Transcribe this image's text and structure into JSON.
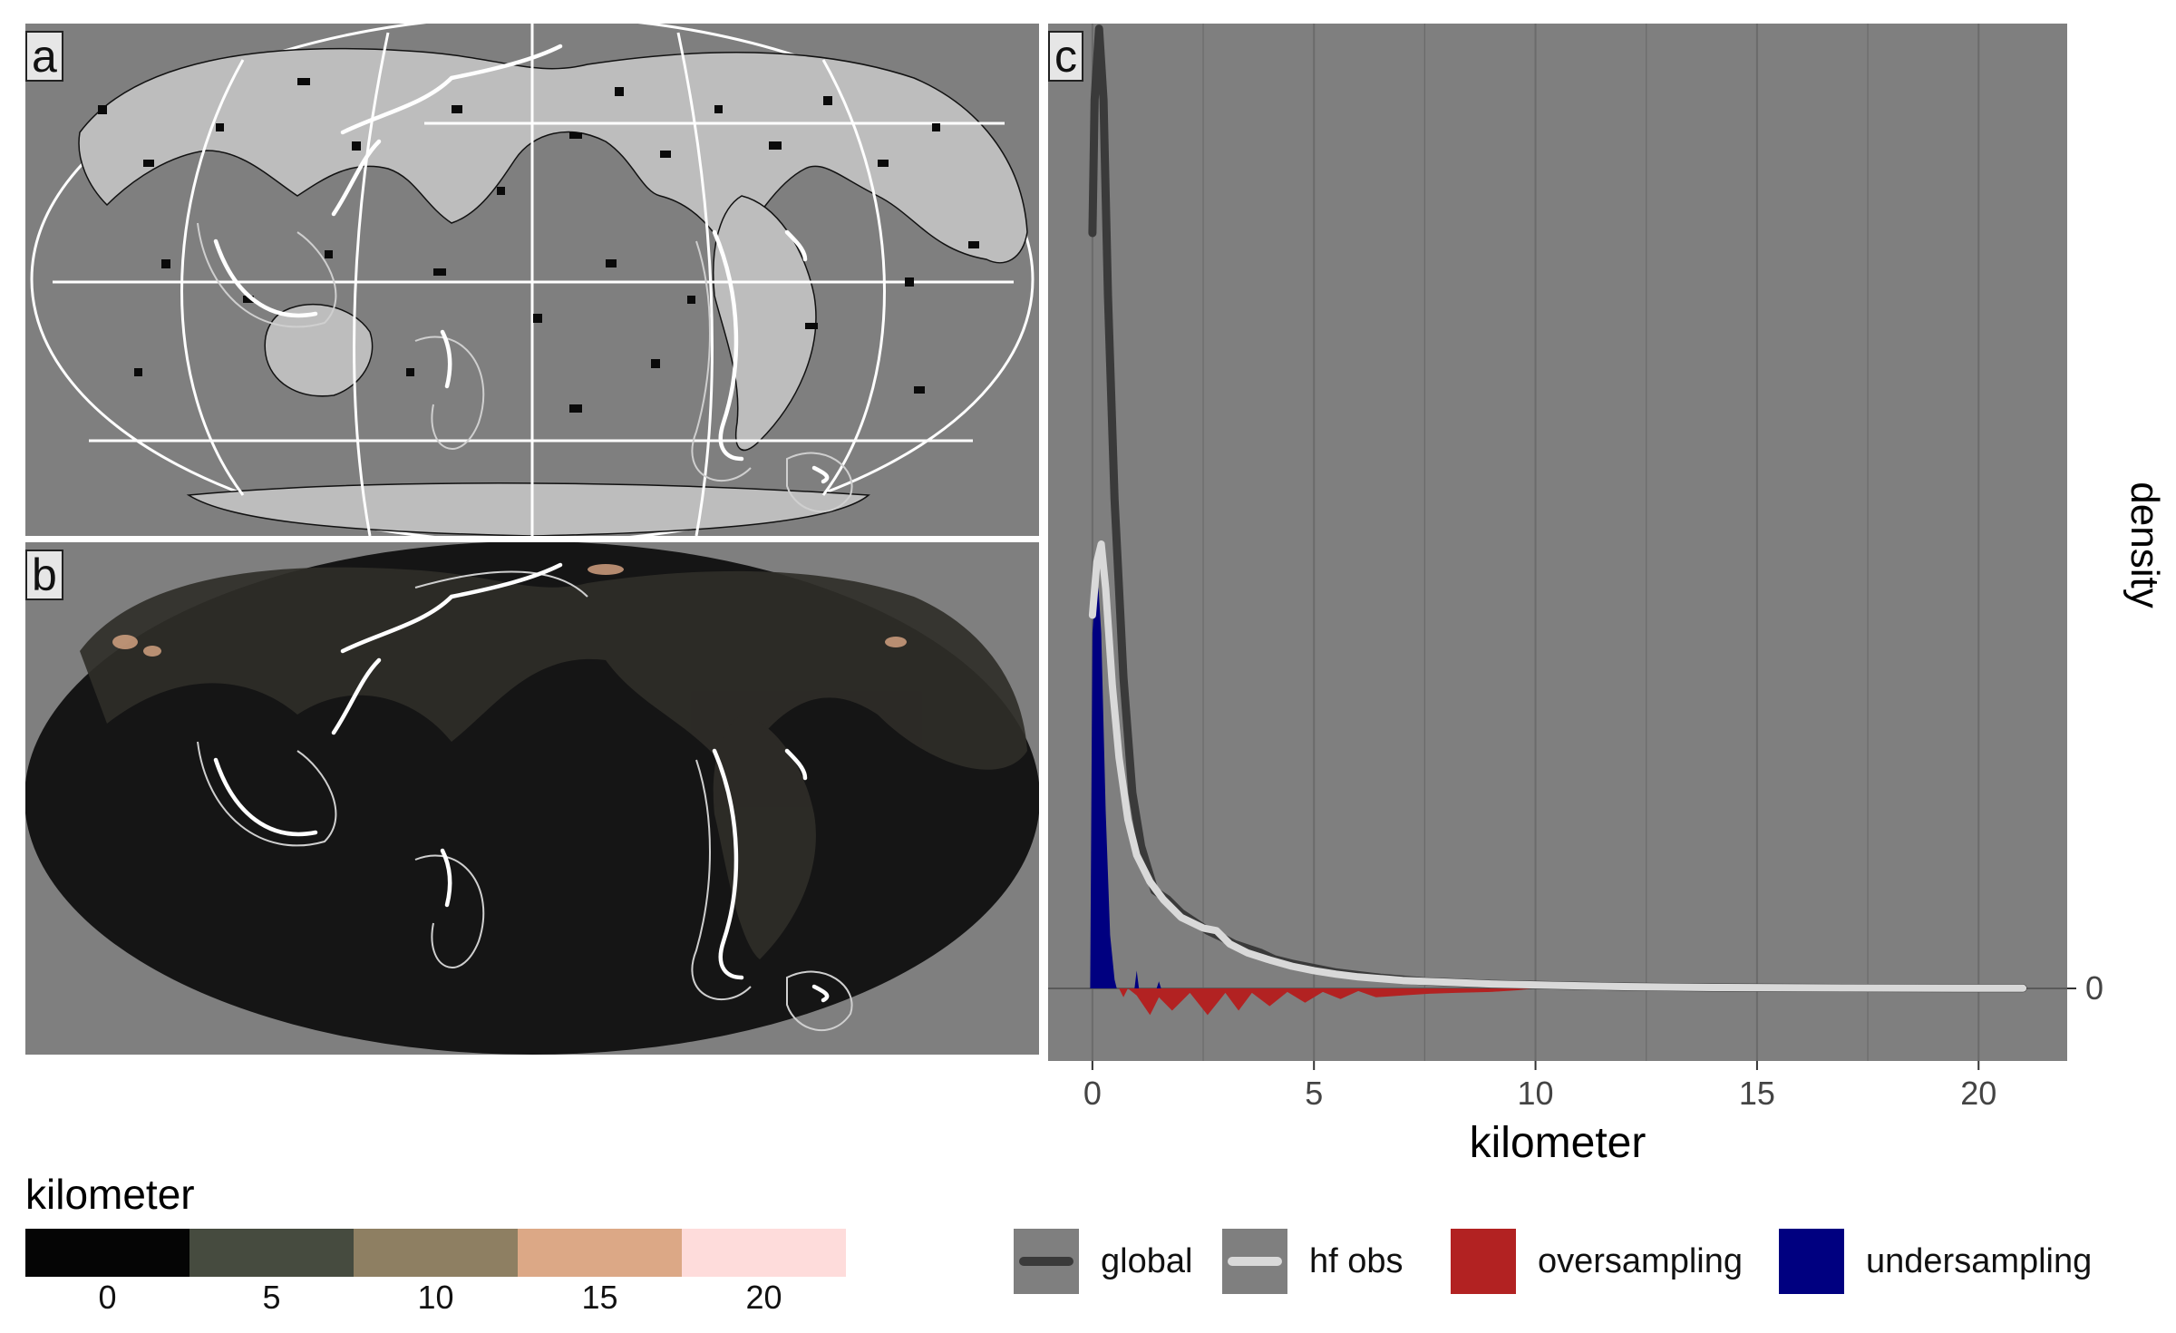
{
  "panels": {
    "a": "a",
    "b": "b",
    "c": "c"
  },
  "chart_data": {
    "type": "area",
    "xlabel": "kilometer",
    "ylabel": "density",
    "xlim": [
      -1,
      22
    ],
    "x_ticks": [
      0,
      5,
      10,
      15,
      20
    ],
    "y_ticks": [
      0
    ],
    "grid": true,
    "legend_position": "bottom",
    "series": [
      {
        "name": "global",
        "kind": "line",
        "color": "#3a3a3a",
        "points": [
          [
            0,
            0.85
          ],
          [
            0.05,
            1.0
          ],
          [
            0.15,
            1.08
          ],
          [
            0.25,
            1.0
          ],
          [
            0.35,
            0.78
          ],
          [
            0.5,
            0.55
          ],
          [
            0.7,
            0.35
          ],
          [
            0.9,
            0.22
          ],
          [
            1.1,
            0.16
          ],
          [
            1.4,
            0.11
          ],
          [
            1.7,
            0.1
          ],
          [
            2.0,
            0.085
          ],
          [
            2.3,
            0.075
          ],
          [
            2.6,
            0.065
          ],
          [
            2.9,
            0.058
          ],
          [
            3.2,
            0.05
          ],
          [
            3.5,
            0.045
          ],
          [
            3.8,
            0.04
          ],
          [
            4.1,
            0.033
          ],
          [
            4.5,
            0.028
          ],
          [
            5.0,
            0.023
          ],
          [
            5.5,
            0.018
          ],
          [
            6.0,
            0.015
          ],
          [
            6.5,
            0.012
          ],
          [
            7.0,
            0.01
          ],
          [
            7.5,
            0.008
          ],
          [
            8.0,
            0.007
          ],
          [
            9.0,
            0.005
          ],
          [
            10.0,
            0.004
          ],
          [
            11.0,
            0.003
          ],
          [
            12.0,
            0.002
          ],
          [
            14.0,
            0.001
          ],
          [
            17.0,
            0.0005
          ],
          [
            21.0,
            0.0002
          ]
        ]
      },
      {
        "name": "hf obs",
        "kind": "line",
        "color": "#d9d9d9",
        "points": [
          [
            0,
            0.42
          ],
          [
            0.1,
            0.48
          ],
          [
            0.2,
            0.5
          ],
          [
            0.3,
            0.45
          ],
          [
            0.45,
            0.34
          ],
          [
            0.6,
            0.26
          ],
          [
            0.8,
            0.19
          ],
          [
            1.0,
            0.15
          ],
          [
            1.3,
            0.12
          ],
          [
            1.6,
            0.1
          ],
          [
            2.0,
            0.08
          ],
          [
            2.5,
            0.068
          ],
          [
            2.8,
            0.065
          ],
          [
            3.1,
            0.05
          ],
          [
            3.5,
            0.04
          ],
          [
            4.0,
            0.032
          ],
          [
            4.5,
            0.025
          ],
          [
            5.0,
            0.02
          ],
          [
            5.5,
            0.016
          ],
          [
            6.0,
            0.013
          ],
          [
            6.5,
            0.011
          ],
          [
            7.0,
            0.009
          ],
          [
            7.5,
            0.008
          ],
          [
            8.0,
            0.007
          ],
          [
            9.0,
            0.005
          ],
          [
            10.0,
            0.004
          ],
          [
            11.0,
            0.003
          ],
          [
            12.0,
            0.002
          ],
          [
            14.0,
            0.001
          ],
          [
            17.0,
            0.0005
          ],
          [
            21.0,
            0.0002
          ]
        ]
      },
      {
        "name": "oversampling",
        "kind": "area",
        "color": "#b22222",
        "points": [
          [
            0.6,
            0.0
          ],
          [
            0.7,
            -0.01
          ],
          [
            0.8,
            0.0
          ],
          [
            1.0,
            -0.008
          ],
          [
            1.3,
            -0.03
          ],
          [
            1.5,
            -0.01
          ],
          [
            1.8,
            -0.025
          ],
          [
            2.2,
            -0.005
          ],
          [
            2.6,
            -0.03
          ],
          [
            3.0,
            -0.005
          ],
          [
            3.3,
            -0.025
          ],
          [
            3.6,
            -0.005
          ],
          [
            4.0,
            -0.02
          ],
          [
            4.4,
            -0.004
          ],
          [
            4.8,
            -0.016
          ],
          [
            5.2,
            -0.004
          ],
          [
            5.6,
            -0.012
          ],
          [
            6.0,
            -0.003
          ],
          [
            6.4,
            -0.01
          ],
          [
            7.0,
            -0.008
          ],
          [
            7.6,
            -0.006
          ],
          [
            8.2,
            -0.005
          ],
          [
            9.0,
            -0.004
          ],
          [
            9.6,
            -0.002
          ],
          [
            10.0,
            0.0
          ]
        ]
      },
      {
        "name": "undersampling",
        "kind": "area",
        "color": "#000080",
        "points": [
          [
            -0.05,
            0.0
          ],
          [
            0.0,
            0.4
          ],
          [
            0.1,
            0.48
          ],
          [
            0.2,
            0.4
          ],
          [
            0.3,
            0.2
          ],
          [
            0.4,
            0.06
          ],
          [
            0.5,
            0.01
          ],
          [
            0.55,
            0.0
          ],
          [
            0.95,
            0.0
          ],
          [
            1.0,
            0.02
          ],
          [
            1.05,
            0.0
          ],
          [
            1.45,
            0.0
          ],
          [
            1.5,
            0.008
          ],
          [
            1.55,
            0.0
          ]
        ]
      }
    ]
  },
  "legend": {
    "colorbar_title": "kilometer",
    "colorbar_ticks": [
      "0",
      "5",
      "10",
      "15",
      "20"
    ],
    "colorbar_colors": [
      "#050505",
      "#464b3f",
      "#8e7f62",
      "#dca886",
      "#fedcdb"
    ],
    "density_items": [
      {
        "label": "global",
        "color": "#3a3a3a",
        "kind": "line"
      },
      {
        "label": "hf obs",
        "color": "#d9d9d9",
        "kind": "line"
      },
      {
        "label": "oversampling",
        "color": "#b22222",
        "kind": "fill"
      },
      {
        "label": "undersampling",
        "color": "#000080",
        "kind": "fill"
      }
    ]
  }
}
